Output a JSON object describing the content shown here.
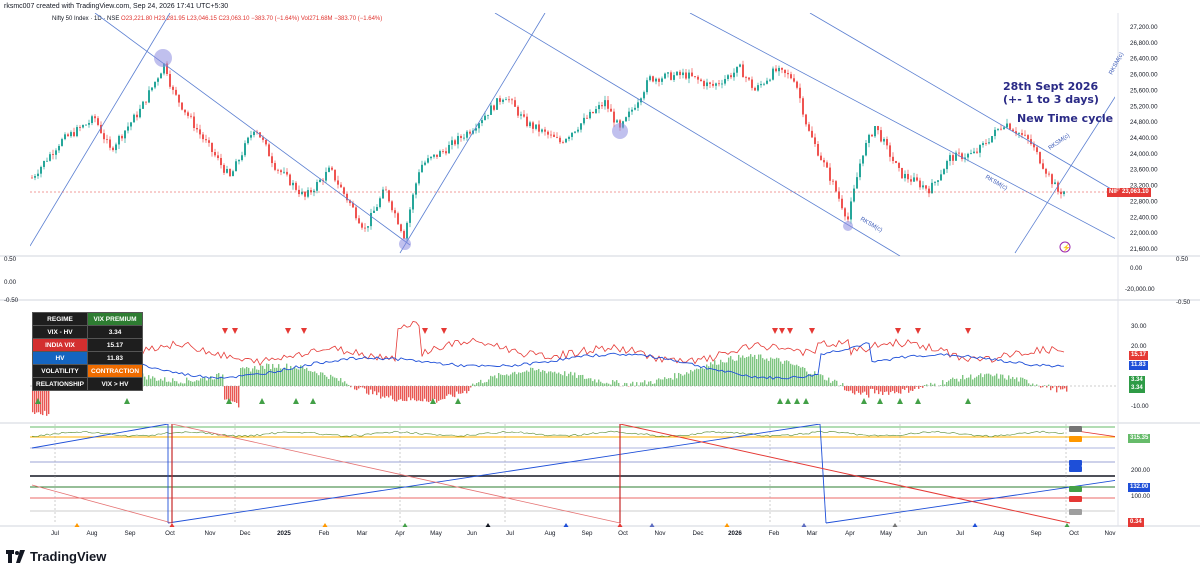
{
  "header": {
    "created_by": "rksmc007 created with TradingView.com, Sep 24, 2026 17:41 UTC+5:30"
  },
  "legend": {
    "symbol": "Nifty 50 Index · 1D · NSE",
    "ohlc": "O23,221.80 H23,281.95 L23,046.15 C23,063.10 −383.70 (−1.64%)",
    "vol": "Vol271.68M −383.70 (−1.64%)"
  },
  "annotations": {
    "date_line1": "28th Sept 2026",
    "date_line2": "(+- 1 to 3 days)",
    "cycle": "New Time cycle",
    "channel_label": "RKSM(c)"
  },
  "price_axis": {
    "labels": [
      "27,200.00",
      "26,800.00",
      "26,400.00",
      "26,000.00",
      "25,600.00",
      "25,200.00",
      "24,800.00",
      "24,400.00",
      "24,000.00",
      "23,600.00",
      "23,200.00",
      "22,800.00",
      "22,400.00",
      "22,000.00",
      "21,600.00"
    ],
    "last_tag": "NIFTY",
    "last_value": "23,063.10"
  },
  "mid_axis": {
    "left_top": "0.50",
    "left_mid": "0.00",
    "left_bottom": "-0.50",
    "right_top": "0.00",
    "right_bottom": "-20,000.00",
    "far_right_top": "0.50",
    "far_right_bottom": "-0.50"
  },
  "vix_axis": {
    "labels": [
      "30.00",
      "20.00",
      "10.00",
      "-10.00"
    ],
    "tag_vix": "15.17",
    "tag_hv": "11.83",
    "tag_diff1": "3.34",
    "tag_diff2": "3.34"
  },
  "bottom_axis": {
    "labels": [
      "315.35",
      "200.00",
      "132.00",
      "100.00",
      "0.34"
    ]
  },
  "regime_table": [
    {
      "key": "REGIME",
      "value": "VIX PREMIUM",
      "key_color": "#1e1e1e",
      "value_color": "#2e7d32"
    },
    {
      "key": "VIX - HV",
      "value": "3.34",
      "key_color": "#1e1e1e",
      "value_color": "#1e1e1e"
    },
    {
      "key": "INDIA VIX",
      "value": "15.17",
      "key_color": "#d32f2f",
      "value_color": "#1e1e1e"
    },
    {
      "key": "HV",
      "value": "11.83",
      "key_color": "#1565c0",
      "value_color": "#1e1e1e"
    },
    {
      "key": "VOLATILITY",
      "value": "CONTRACTION",
      "key_color": "#1e1e1e",
      "value_color": "#ef6c00"
    },
    {
      "key": "RELATIONSHIP",
      "value": "VIX > HV",
      "key_color": "#1e1e1e",
      "value_color": "#1e1e1e"
    }
  ],
  "time_axis": [
    "Jul",
    "Aug",
    "Sep",
    "Oct",
    "Nov",
    "Dec",
    "2025",
    "Feb",
    "Mar",
    "Apr",
    "May",
    "Jun",
    "Jul",
    "Aug",
    "Sep",
    "Oct",
    "Nov",
    "Dec",
    "2026",
    "Feb",
    "Mar",
    "Apr",
    "May",
    "Jun",
    "Jul",
    "Aug",
    "Sep",
    "Oct",
    "Nov"
  ],
  "footer": {
    "brand": "TradingView"
  },
  "colors": {
    "up": "#26a69a",
    "down": "#ef5350",
    "channel": "#5b7fd1",
    "vix": "#e53935",
    "hv": "#1e4fd8",
    "hist": "#66bb6a",
    "annotation": "#2a2a86"
  }
}
